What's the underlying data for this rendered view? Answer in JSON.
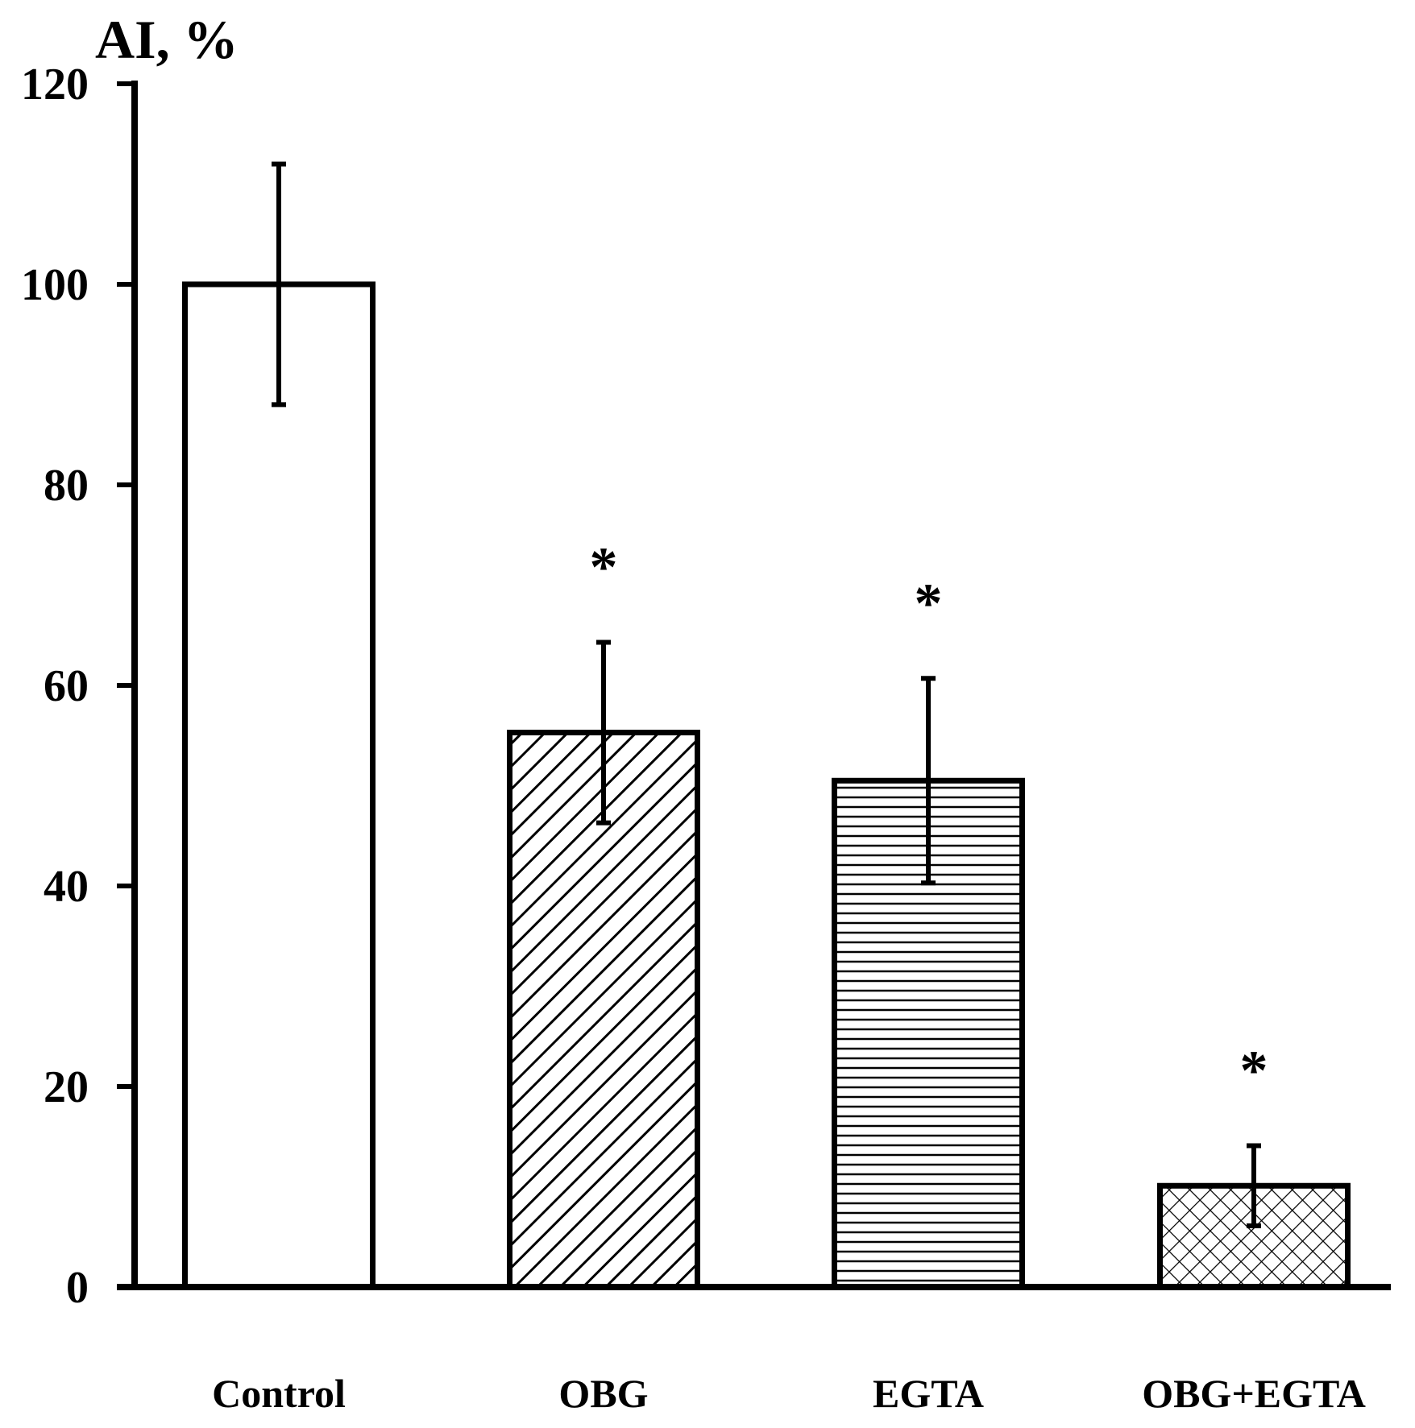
{
  "chart_data": {
    "type": "bar",
    "ylabel": "AI, %",
    "ylim": [
      0,
      120
    ],
    "yticks": [
      "0",
      "20",
      "40",
      "60",
      "80",
      "100",
      "120"
    ],
    "categories": [
      "Control",
      "OBG",
      "EGTA",
      "OBG+EGTA"
    ],
    "values": [
      100,
      55.3,
      50.5,
      10.1
    ],
    "errors": [
      12,
      9,
      10.2,
      4
    ],
    "patterns": [
      "solid-white",
      "diagonal-hatch",
      "horizontal-lines",
      "crosshatch"
    ],
    "significance": [
      "",
      "*",
      "*",
      "*"
    ],
    "colors": {
      "bar_fill": "#ffffff",
      "stroke": "#000000"
    }
  }
}
